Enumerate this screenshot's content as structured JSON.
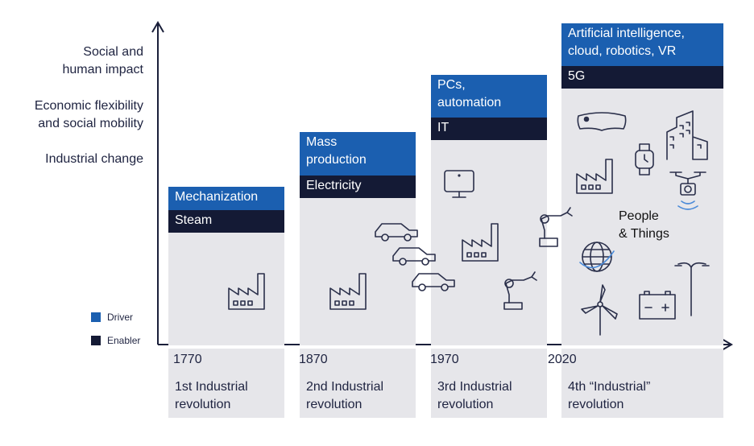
{
  "y_axis_labels": {
    "social": "Social and\nhuman impact",
    "economic": "Economic flexibility\nand social mobility",
    "industrial": "Industrial change"
  },
  "legend": {
    "driver": "Driver",
    "enabler": "Enabler",
    "driver_color": "#1b5fb0",
    "enabler_color": "#141a35"
  },
  "revolutions": [
    {
      "year": "1770",
      "name": "1st Industrial\nrevolution",
      "driver": "Mechanization",
      "enabler": "Steam"
    },
    {
      "year": "1870",
      "name": "2nd Industrial\nrevolution",
      "driver": "Mass\nproduction",
      "enabler": "Electricity"
    },
    {
      "year": "1970",
      "name": "3rd Industrial\nrevolution",
      "driver": "PCs,\nautomation",
      "enabler": "IT"
    },
    {
      "year": "2020",
      "name": "4th “Industrial”\nrevolution",
      "driver": "Artificial intelligence,\ncloud, robotics, VR",
      "enabler": "5G"
    }
  ],
  "people_things": "People\n& Things",
  "icons": [
    "factory-icon",
    "car-icon",
    "monitor-icon",
    "robot-arm-icon",
    "vr-headset-icon",
    "smartwatch-icon",
    "buildings-icon",
    "drone-icon",
    "globe-icon",
    "wind-turbine-icon",
    "battery-icon",
    "streetlight-icon"
  ]
}
